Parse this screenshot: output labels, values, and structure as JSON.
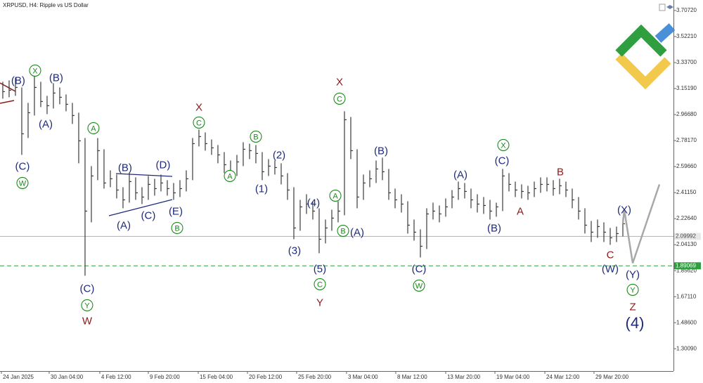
{
  "chart_data": {
    "type": "hlc",
    "title": "XRPUSD, H4:  Ripple vs US Dollar",
    "xlim": [
      -0.44,
      106
    ],
    "ylim": [
      1.142,
      3.782
    ],
    "xticks": [
      {
        "value": -0.22,
        "label": "24 Jan 2025"
      },
      {
        "value": 7.33,
        "label": "30 Jan 04:00"
      },
      {
        "value": 15.33,
        "label": "4 Feb 12:00"
      },
      {
        "value": 23,
        "label": "9 Feb 20:00"
      },
      {
        "value": 30.89,
        "label": "15 Feb 04:00"
      },
      {
        "value": 38.67,
        "label": "20 Feb 12:00"
      },
      {
        "value": 46.44,
        "label": "25 Feb 20:00"
      },
      {
        "value": 54.33,
        "label": "3 Mar 04:00"
      },
      {
        "value": 62.11,
        "label": "8 Mar 12:00"
      },
      {
        "value": 70,
        "label": "13 Mar 20:00"
      },
      {
        "value": 77.78,
        "label": "19 Mar 04:00"
      },
      {
        "value": 85.67,
        "label": "24 Mar 12:00"
      },
      {
        "value": 93.44,
        "label": "29 Mar 20:00"
      }
    ],
    "yticks": [
      {
        "value": 3.7072,
        "label": "3.70720"
      },
      {
        "value": 3.5221,
        "label": "3.52210"
      },
      {
        "value": 3.337,
        "label": "3.33700"
      },
      {
        "value": 3.1519,
        "label": "3.15190"
      },
      {
        "value": 2.9668,
        "label": "2.96680"
      },
      {
        "value": 2.7817,
        "label": "2.78170"
      },
      {
        "value": 2.5966,
        "label": "2.59660"
      },
      {
        "value": 2.4115,
        "label": "2.41150"
      },
      {
        "value": 2.2264,
        "label": "2.22640"
      },
      {
        "value": 2.0413,
        "label": "2.04130"
      },
      {
        "value": 1.8562,
        "label": "1.85620"
      },
      {
        "value": 1.6711,
        "label": "1.67110"
      },
      {
        "value": 1.486,
        "label": "1.48600"
      },
      {
        "value": 1.3009,
        "label": "1.30090"
      }
    ],
    "bar_color": "#3a3a3a",
    "high": [
      3.2,
      3.21,
      3.23,
      3.16,
      3.05,
      3.24,
      3.2,
      3.1,
      3.19,
      3.16,
      3.11,
      3.05,
      2.98,
      2.8,
      2.6,
      2.8,
      2.72,
      2.57,
      2.54,
      2.45,
      2.55,
      2.52,
      2.45,
      2.53,
      2.51,
      2.54,
      2.5,
      2.48,
      2.5,
      2.57,
      2.8,
      2.86,
      2.84,
      2.79,
      2.75,
      2.7,
      2.64,
      2.68,
      2.77,
      2.76,
      2.75,
      2.7,
      2.65,
      2.64,
      2.62,
      2.55,
      2.45,
      2.36,
      2.4,
      2.35,
      2.3,
      2.22,
      2.29,
      2.35,
      2.99,
      2.95,
      2.72,
      2.54,
      2.57,
      2.64,
      2.66,
      2.58,
      2.44,
      2.4,
      2.35,
      2.22,
      2.15,
      2.3,
      2.34,
      2.32,
      2.37,
      2.43,
      2.49,
      2.48,
      2.44,
      2.4,
      2.38,
      2.36,
      2.34,
      2.58,
      2.55,
      2.49,
      2.47,
      2.46,
      2.49,
      2.52,
      2.52,
      2.5,
      2.51,
      2.49,
      2.44,
      2.38,
      2.3,
      2.21,
      2.22,
      2.2,
      2.16,
      2.17,
      2.23
    ],
    "low": [
      3.08,
      3.09,
      3.1,
      2.68,
      2.8,
      2.96,
      3.02,
      2.97,
      3.01,
      3.04,
      2.99,
      2.9,
      2.62,
      1.82,
      2.2,
      2.5,
      2.44,
      2.45,
      2.37,
      2.3,
      2.34,
      2.36,
      2.33,
      2.36,
      2.39,
      2.42,
      2.39,
      2.36,
      2.38,
      2.42,
      2.5,
      2.74,
      2.71,
      2.68,
      2.62,
      2.55,
      2.49,
      2.53,
      2.6,
      2.65,
      2.62,
      2.5,
      2.53,
      2.54,
      2.47,
      2.36,
      2.08,
      2.14,
      2.26,
      2.22,
      1.98,
      2.05,
      2.14,
      2.2,
      2.25,
      2.65,
      2.3,
      2.36,
      2.45,
      2.48,
      2.5,
      2.36,
      2.3,
      2.27,
      2.12,
      2.07,
      1.95,
      2.01,
      2.22,
      2.2,
      2.24,
      2.3,
      2.36,
      2.37,
      2.3,
      2.27,
      2.26,
      2.22,
      2.24,
      2.28,
      2.42,
      2.38,
      2.37,
      2.36,
      2.38,
      2.41,
      2.42,
      2.39,
      2.4,
      2.38,
      2.3,
      2.22,
      2.12,
      2.06,
      2.09,
      2.06,
      2.04,
      2.06,
      2.1
    ],
    "close": [
      3.13,
      3.14,
      3.16,
      2.83,
      2.98,
      3.16,
      3.06,
      3.03,
      3.12,
      3.09,
      3.04,
      2.96,
      2.78,
      2.28,
      2.53,
      2.71,
      2.48,
      2.51,
      2.43,
      2.36,
      2.49,
      2.41,
      2.38,
      2.47,
      2.44,
      2.48,
      2.44,
      2.41,
      2.44,
      2.51,
      2.76,
      2.81,
      2.76,
      2.73,
      2.68,
      2.61,
      2.56,
      2.63,
      2.72,
      2.71,
      2.69,
      2.56,
      2.6,
      2.59,
      2.53,
      2.43,
      2.16,
      2.31,
      2.33,
      2.28,
      2.08,
      2.16,
      2.23,
      2.28,
      2.93,
      2.71,
      2.38,
      2.48,
      2.51,
      2.58,
      2.56,
      2.41,
      2.36,
      2.33,
      2.18,
      2.13,
      2.03,
      2.26,
      2.28,
      2.26,
      2.31,
      2.38,
      2.44,
      2.42,
      2.36,
      2.33,
      2.32,
      2.28,
      2.31,
      2.53,
      2.47,
      2.43,
      2.42,
      2.41,
      2.44,
      2.47,
      2.47,
      2.44,
      2.46,
      2.43,
      2.36,
      2.28,
      2.18,
      2.13,
      2.17,
      2.13,
      2.09,
      2.12,
      2.19
    ],
    "forecast": {
      "color": "#a8a8a8",
      "x": [
        98,
        98.22,
        99.56,
        103.78
      ],
      "values": [
        2.19,
        2.29,
        1.91,
        2.47
      ]
    },
    "price_line": {
      "value": 2.09992,
      "label": "2.09992",
      "color": "#b0b0b0"
    },
    "support_line": {
      "value": 1.89069,
      "label": "1.89069",
      "color": "#2e9e3e"
    },
    "annotations": [
      {
        "text": "(B)",
        "x": 2.44,
        "y": 3.21,
        "color": "#1e2a78"
      },
      {
        "text": "X",
        "x": 5.11,
        "y": 3.28,
        "color": "#1a8a1a",
        "circled": true
      },
      {
        "text": "(B)",
        "x": 8.44,
        "y": 3.23,
        "color": "#1e2a78"
      },
      {
        "text": "(A)",
        "x": 6.78,
        "y": 2.9,
        "color": "#1e2a78"
      },
      {
        "text": "(C)",
        "x": 3.11,
        "y": 2.6,
        "color": "#1e2a78"
      },
      {
        "text": "W",
        "x": 3.11,
        "y": 2.48,
        "color": "#1a8a1a",
        "circled": true
      },
      {
        "text": "A",
        "x": 14.33,
        "y": 2.87,
        "color": "#1a8a1a",
        "circled": true
      },
      {
        "text": "(B)",
        "x": 19.33,
        "y": 2.59,
        "color": "#1e2a78"
      },
      {
        "text": "(D)",
        "x": 25.33,
        "y": 2.61,
        "color": "#1e2a78"
      },
      {
        "text": "(E)",
        "x": 27.33,
        "y": 2.28,
        "color": "#1e2a78"
      },
      {
        "text": "(A)",
        "x": 19.11,
        "y": 2.18,
        "color": "#1e2a78"
      },
      {
        "text": "(C)",
        "x": 23,
        "y": 2.25,
        "color": "#1e2a78"
      },
      {
        "text": "B",
        "x": 27.56,
        "y": 2.16,
        "color": "#1a8a1a",
        "circled": true
      },
      {
        "text": "X",
        "x": 31,
        "y": 3.02,
        "color": "#8b1a1a"
      },
      {
        "text": "C",
        "x": 31,
        "y": 2.91,
        "color": "#1a8a1a",
        "circled": true
      },
      {
        "text": "B",
        "x": 40,
        "y": 2.81,
        "color": "#1a8a1a",
        "circled": true
      },
      {
        "text": "A",
        "x": 35.89,
        "y": 2.53,
        "color": "#1a8a1a",
        "circled": true
      },
      {
        "text": "(2)",
        "x": 43.67,
        "y": 2.68,
        "color": "#1e2a78"
      },
      {
        "text": "(1)",
        "x": 40.89,
        "y": 2.44,
        "color": "#1e2a78"
      },
      {
        "text": "(4)",
        "x": 49.11,
        "y": 2.34,
        "color": "#1e2a78"
      },
      {
        "text": "(3)",
        "x": 46.11,
        "y": 2.0,
        "color": "#1e2a78"
      },
      {
        "text": "(5)",
        "x": 50.11,
        "y": 1.87,
        "color": "#1e2a78"
      },
      {
        "text": "C",
        "x": 50.11,
        "y": 1.76,
        "color": "#1a8a1a",
        "circled": true
      },
      {
        "text": "Y",
        "x": 50.11,
        "y": 1.63,
        "color": "#8b1a1a"
      },
      {
        "text": "A",
        "x": 52.56,
        "y": 2.39,
        "color": "#1a8a1a",
        "circled": true
      },
      {
        "text": "B",
        "x": 53.78,
        "y": 2.14,
        "color": "#1a8a1a",
        "circled": true
      },
      {
        "text": "(A)",
        "x": 56,
        "y": 2.13,
        "color": "#1e2a78"
      },
      {
        "text": "X",
        "x": 53.22,
        "y": 3.2,
        "color": "#8b1a1a"
      },
      {
        "text": "C",
        "x": 53.22,
        "y": 3.08,
        "color": "#1a8a1a",
        "circled": true
      },
      {
        "text": "(B)",
        "x": 59.78,
        "y": 2.71,
        "color": "#1e2a78"
      },
      {
        "text": "(C)",
        "x": 65.78,
        "y": 1.87,
        "color": "#1e2a78"
      },
      {
        "text": "W",
        "x": 65.78,
        "y": 1.75,
        "color": "#1a8a1a",
        "circled": true
      },
      {
        "text": "(C)",
        "x": 13.33,
        "y": 1.73,
        "color": "#1e2a78"
      },
      {
        "text": "Y",
        "x": 13.33,
        "y": 1.61,
        "color": "#1a8a1a",
        "circled": true
      },
      {
        "text": "W",
        "x": 13.33,
        "y": 1.5,
        "color": "#8b1a1a"
      },
      {
        "text": "(A)",
        "x": 72.33,
        "y": 2.54,
        "color": "#1e2a78"
      },
      {
        "text": "(C)",
        "x": 78.89,
        "y": 2.64,
        "color": "#1e2a78"
      },
      {
        "text": "X",
        "x": 79.11,
        "y": 2.75,
        "color": "#1a8a1a",
        "circled": true
      },
      {
        "text": "(B)",
        "x": 77.67,
        "y": 2.16,
        "color": "#1e2a78"
      },
      {
        "text": "B",
        "x": 88.11,
        "y": 2.56,
        "color": "#8b1a1a"
      },
      {
        "text": "A",
        "x": 81.78,
        "y": 2.28,
        "color": "#8b1a1a"
      },
      {
        "text": "C",
        "x": 96,
        "y": 1.97,
        "color": "#8b1a1a"
      },
      {
        "text": "(W)",
        "x": 96,
        "y": 1.87,
        "color": "#1e2a78"
      },
      {
        "text": "(X)",
        "x": 98.22,
        "y": 2.29,
        "color": "#1e2a78"
      },
      {
        "text": "(Y)",
        "x": 99.56,
        "y": 1.83,
        "color": "#1e2a78"
      },
      {
        "text": "Y",
        "x": 99.56,
        "y": 1.72,
        "color": "#1a8a1a",
        "circled": true
      },
      {
        "text": "Z",
        "x": 99.56,
        "y": 1.6,
        "color": "#8b1a1a"
      },
      {
        "text": "(4)",
        "x": 99.89,
        "y": 1.48,
        "color": "#1e2a78",
        "large": true
      }
    ]
  }
}
